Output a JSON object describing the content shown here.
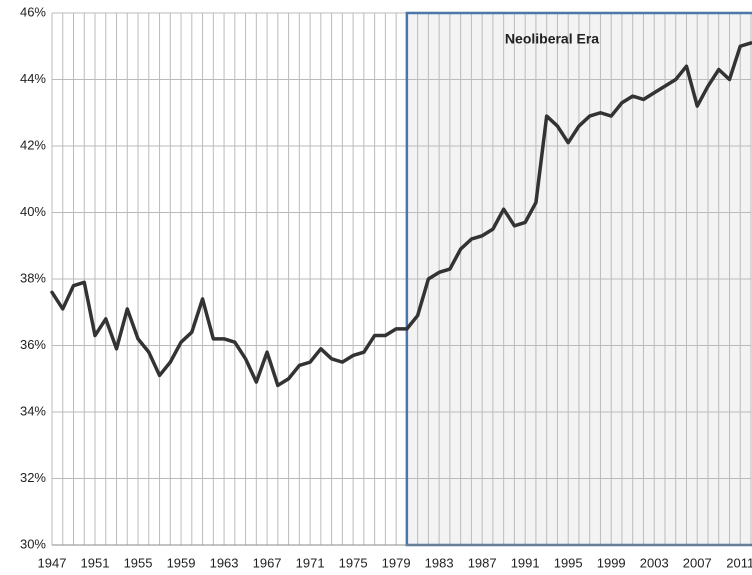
{
  "chart_data": {
    "type": "line",
    "x": [
      1947,
      1948,
      1949,
      1950,
      1951,
      1952,
      1953,
      1954,
      1955,
      1956,
      1957,
      1958,
      1959,
      1960,
      1961,
      1962,
      1963,
      1964,
      1965,
      1966,
      1967,
      1968,
      1969,
      1970,
      1971,
      1972,
      1973,
      1974,
      1975,
      1976,
      1977,
      1978,
      1979,
      1980,
      1981,
      1982,
      1983,
      1984,
      1985,
      1986,
      1987,
      1988,
      1989,
      1990,
      1991,
      1992,
      1993,
      1994,
      1995,
      1996,
      1997,
      1998,
      1999,
      2000,
      2001,
      2002,
      2003,
      2004,
      2005,
      2006,
      2007,
      2008,
      2009,
      2010,
      2011,
      2012
    ],
    "series": [
      {
        "color": "#333333",
        "values": [
          37.6,
          37.1,
          37.8,
          37.9,
          36.3,
          36.8,
          35.9,
          37.1,
          36.2,
          35.8,
          35.1,
          35.5,
          36.1,
          36.4,
          37.4,
          36.2,
          36.2,
          36.1,
          35.6,
          34.9,
          35.8,
          34.8,
          35.0,
          35.4,
          35.5,
          35.9,
          35.6,
          35.5,
          35.7,
          35.8,
          36.3,
          36.3,
          36.5,
          36.5,
          36.9,
          38.0,
          38.2,
          38.3,
          38.9,
          39.2,
          39.3,
          39.5,
          40.1,
          39.6,
          39.7,
          40.3,
          42.9,
          42.6,
          42.1,
          42.6,
          42.9,
          43.0,
          42.9,
          43.3,
          43.5,
          43.4,
          43.6,
          43.8,
          44.0,
          44.4,
          43.2,
          43.8,
          44.3,
          44.0,
          45.0,
          45.1
        ]
      }
    ],
    "xlim": [
      1947,
      2012
    ],
    "xticks": [
      1947,
      1951,
      1955,
      1959,
      1963,
      1967,
      1971,
      1975,
      1979,
      1983,
      1987,
      1991,
      1995,
      1999,
      2003,
      2007,
      2011
    ],
    "ylim": [
      30,
      46
    ],
    "yticks": [
      {
        "value": 30,
        "label": "30%"
      },
      {
        "value": 32,
        "label": "32%"
      },
      {
        "value": 34,
        "label": "34%"
      },
      {
        "value": 36,
        "label": "36%"
      },
      {
        "value": 38,
        "label": "38%"
      },
      {
        "value": 40,
        "label": "40%"
      },
      {
        "value": 42,
        "label": "42%"
      },
      {
        "value": 44,
        "label": "44%"
      },
      {
        "value": 46,
        "label": "46%"
      }
    ],
    "grid": true,
    "region": {
      "label": "Neoliberal Era",
      "from": 1980,
      "color": "#4a76a8"
    }
  }
}
